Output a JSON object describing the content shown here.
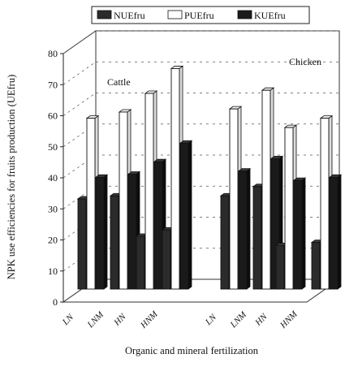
{
  "chart_data": {
    "type": "bar",
    "title": "",
    "xlabel": "Organic and mineral fertilization",
    "ylabel": "NPK use efficiencies for fruits production (UEfru)",
    "ylim": [
      0,
      80
    ],
    "yticks": [
      0,
      10,
      20,
      30,
      40,
      50,
      60,
      70,
      80
    ],
    "grid": true,
    "three_d": true,
    "legend_position": "top",
    "legend": [
      "NUEfru",
      "PUEfru",
      "KUEfru"
    ],
    "groups": [
      "Cattle",
      "Chicken"
    ],
    "categories": [
      "LN",
      "LNM",
      "HN",
      "HNM"
    ],
    "series": [
      {
        "name": "NUEfru",
        "fill": "#2b2b2b",
        "cattle": [
          29,
          30,
          17,
          19
        ],
        "chicken": [
          30,
          33,
          14,
          15
        ]
      },
      {
        "name": "PUEfru",
        "fill": "#ffffff",
        "cattle": [
          55,
          57,
          63,
          71
        ],
        "chicken": [
          58,
          64,
          52,
          55
        ]
      },
      {
        "name": "KUEfru",
        "fill": "#1a1a1a",
        "cattle": [
          36,
          37,
          41,
          47
        ],
        "chicken": [
          38,
          42,
          35,
          36
        ]
      }
    ]
  }
}
